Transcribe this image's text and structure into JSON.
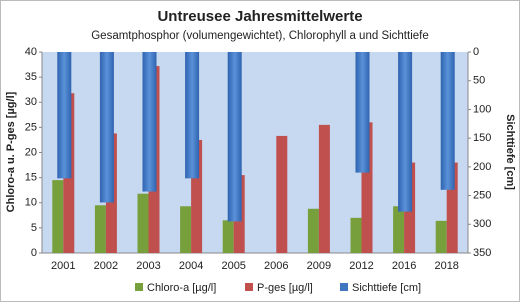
{
  "chart_data": {
    "type": "bar",
    "title": "Untreusee Jahresmittelwerte",
    "subtitle": "Gesamtphosphor (volumengewichtet), Chlorophyll a und Sichttiefe",
    "y_label": "Chloro-a u. P-ges [µg/l]",
    "y2_label": "Sichttiefe [cm]",
    "categories": [
      "2001",
      "2002",
      "2003",
      "2004",
      "2005",
      "2006",
      "2009",
      "2012",
      "2016",
      "2018"
    ],
    "series": [
      {
        "name": "Chloro-a [µg/l]",
        "color": "#77a03c",
        "values": [
          14.5,
          9.5,
          11.8,
          9.3,
          6.5,
          null,
          8.8,
          7.0,
          9.3,
          6.4
        ]
      },
      {
        "name": "P-ges [µg/l]",
        "color": "#c0504d",
        "values": [
          31.8,
          23.8,
          37.2,
          22.5,
          15.5,
          23.3,
          25.5,
          26.0,
          18.0,
          18.0
        ]
      },
      {
        "name": "Sichttiefe [cm]",
        "color": "#3f76c0",
        "axis": "y2",
        "values": [
          220,
          262,
          243,
          220,
          295,
          null,
          null,
          210,
          278,
          240
        ]
      }
    ],
    "ylim": [
      0,
      40
    ],
    "yticks": [
      0,
      5,
      10,
      15,
      20,
      25,
      30,
      35,
      40
    ],
    "y2lim": [
      0,
      350
    ],
    "y2ticks": [
      0,
      50,
      100,
      150,
      200,
      250,
      300,
      350
    ],
    "y2_reversed": true,
    "legend": "bottom"
  }
}
